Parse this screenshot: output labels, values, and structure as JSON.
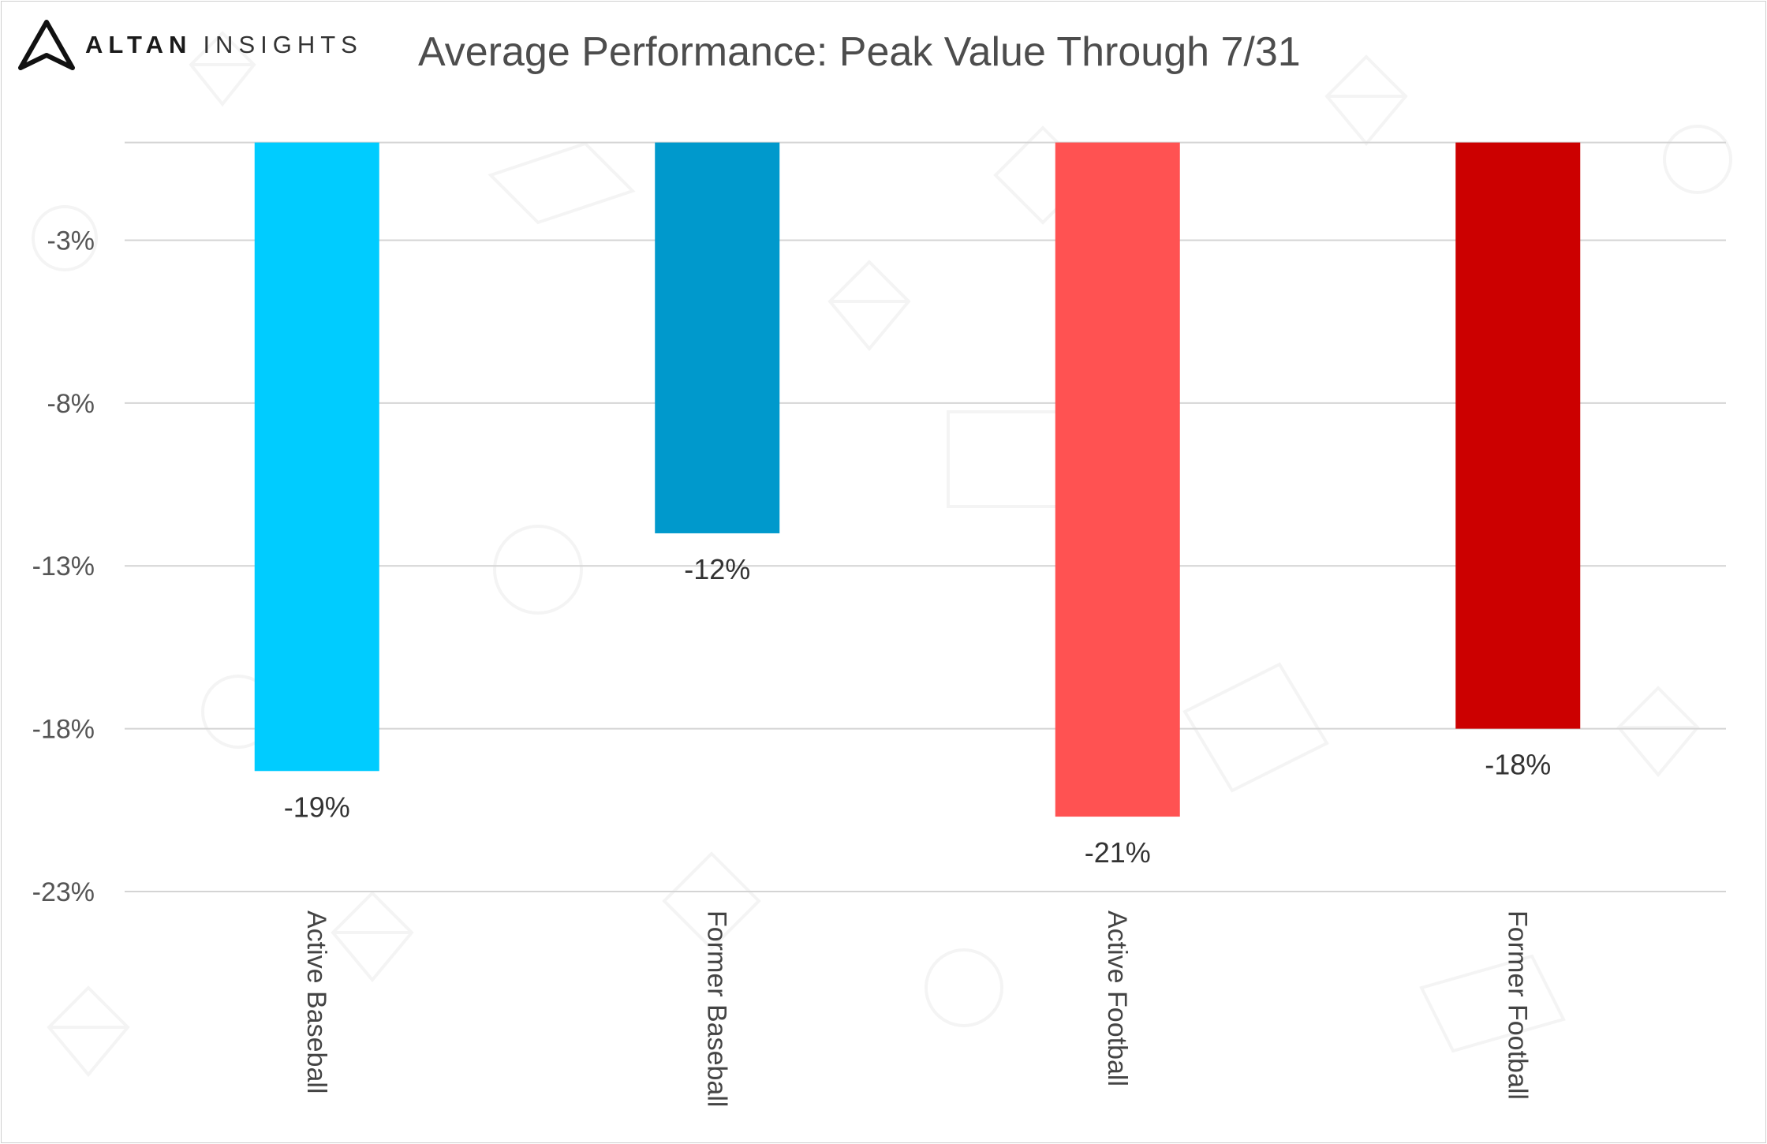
{
  "brand": {
    "name_part1": "ALTAN",
    "name_part2": "INSIGHTS",
    "logo_icon": "triangle-logo-icon"
  },
  "chart_data": {
    "type": "bar",
    "title": "Average Performance: Peak Value Through 7/31",
    "categories": [
      "Active Baseball",
      "Former Baseball",
      "Active Football",
      "Former Football"
    ],
    "values": [
      -19.3,
      -12.0,
      -20.7,
      -18.0
    ],
    "data_labels": [
      "-19%",
      "-12%",
      "-21%",
      "-18%"
    ],
    "colors": [
      "#00ccff",
      "#0099cc",
      "#ff5252",
      "#cc0000"
    ],
    "yticks": [
      -3,
      -8,
      -13,
      -18,
      -23
    ],
    "ytick_labels": [
      "-3%",
      "-8%",
      "-13%",
      "-18%",
      "-23%"
    ],
    "ylim": [
      -23,
      0.5
    ],
    "xlabel": "",
    "ylabel": "",
    "grid": true,
    "legend": "none"
  },
  "colors": {
    "grid": "#d4d4d4",
    "background_pattern": "#e8e8e8"
  }
}
